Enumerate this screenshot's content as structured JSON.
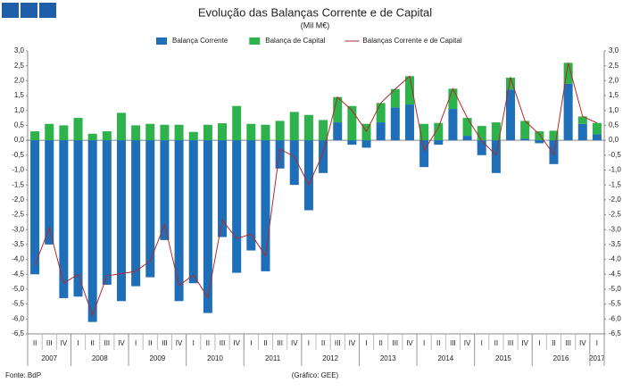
{
  "chart_data": {
    "type": "bar",
    "title": "Evolução das Balanças Corrente e de Capital",
    "subtitle": "(Mil M€)",
    "source": "Fonte: BdP",
    "credit": "(Gráfico: GEE)",
    "categories": [
      "II",
      "III",
      "IV",
      "I",
      "II",
      "III",
      "IV",
      "I",
      "II",
      "III",
      "IV",
      "I",
      "II",
      "III",
      "IV",
      "I",
      "II",
      "III",
      "IV",
      "I",
      "II",
      "III",
      "IV",
      "I",
      "II",
      "III",
      "IV",
      "I",
      "II",
      "III",
      "IV",
      "I",
      "II",
      "III",
      "IV",
      "I",
      "II",
      "III",
      "IV",
      "I"
    ],
    "years": [
      "2007",
      "2008",
      "2009",
      "2010",
      "2011",
      "2012",
      "2013",
      "2014",
      "2015",
      "2016",
      "2017"
    ],
    "series": [
      {
        "name": "Balança Corrente",
        "color": "#1f6fb8",
        "values": [
          -4.5,
          -3.5,
          -5.3,
          -5.25,
          -6.1,
          -4.85,
          -5.4,
          -4.9,
          -4.6,
          -3.35,
          -5.4,
          -4.8,
          -5.8,
          -3.25,
          -4.45,
          -3.7,
          -4.4,
          -0.95,
          -1.5,
          -2.35,
          -1.1,
          0.6,
          -0.15,
          -0.25,
          0.6,
          1.1,
          1.2,
          -0.9,
          -0.15,
          1.05,
          0.15,
          -0.5,
          -1.1,
          1.7,
          0.05,
          -0.1,
          -0.8,
          1.9,
          0.55,
          0.2
        ]
      },
      {
        "name": "Balança de Capital",
        "color": "#2eb34c",
        "values": [
          0.3,
          0.55,
          0.5,
          0.75,
          0.22,
          0.3,
          0.92,
          0.5,
          0.55,
          0.52,
          0.52,
          0.28,
          0.52,
          0.57,
          1.15,
          0.55,
          0.52,
          0.65,
          0.95,
          0.85,
          0.68,
          0.85,
          1.15,
          0.55,
          0.65,
          0.62,
          0.95,
          0.55,
          0.58,
          0.68,
          0.6,
          0.48,
          0.6,
          0.4,
          0.6,
          0.3,
          0.32,
          0.7,
          0.25,
          0.38
        ]
      },
      {
        "name": "Balanças Corrente e de Capital",
        "color": "#b02a2a",
        "type": "line",
        "values": [
          -4.2,
          -2.95,
          -4.8,
          -4.5,
          -5.88,
          -4.55,
          -4.48,
          -4.4,
          -4.05,
          -2.83,
          -4.88,
          -4.52,
          -5.28,
          -2.68,
          -3.3,
          -3.15,
          -3.88,
          -0.3,
          -0.55,
          -1.5,
          -0.42,
          1.45,
          1.0,
          0.3,
          1.25,
          1.72,
          2.15,
          -0.35,
          0.43,
          1.73,
          0.75,
          -0.02,
          -0.5,
          2.1,
          0.65,
          0.2,
          -0.48,
          2.6,
          0.8,
          0.58
        ]
      }
    ],
    "ylim": [
      -6.5,
      3.0
    ],
    "yticks": [
      {
        "value": 3.0,
        "label": "3,0"
      },
      {
        "value": 2.5,
        "label": "2,5"
      },
      {
        "value": 2.0,
        "label": "2,0"
      },
      {
        "value": 1.5,
        "label": "1,5"
      },
      {
        "value": 1.0,
        "label": "1,0"
      },
      {
        "value": 0.5,
        "label": "0,5"
      },
      {
        "value": 0,
        "label": "0,0"
      },
      {
        "value": -0.5,
        "label": "-0,5"
      },
      {
        "value": -1.0,
        "label": "-1,0"
      },
      {
        "value": -1.5,
        "label": "-1,5"
      },
      {
        "value": -2.0,
        "label": "-2,0"
      },
      {
        "value": -2.5,
        "label": "-2,5"
      },
      {
        "value": -3.0,
        "label": "-3,0"
      },
      {
        "value": -3.5,
        "label": "-3,5"
      },
      {
        "value": -4.0,
        "label": "-4,0"
      },
      {
        "value": -4.5,
        "label": "-4,5"
      },
      {
        "value": -5.0,
        "label": "-5,0"
      },
      {
        "value": -5.5,
        "label": "-5,5"
      },
      {
        "value": -6.0,
        "label": "-6,0"
      },
      {
        "value": -6.5,
        "label": "-6,5"
      }
    ],
    "y2lim": [
      -6.5,
      3.0
    ],
    "y2ticks": [
      {
        "value": 3.0,
        "label": "3,0"
      },
      {
        "value": 2.5,
        "label": "2,5"
      },
      {
        "value": 2.0,
        "label": "2,0"
      },
      {
        "value": 1.5,
        "label": "1,5"
      },
      {
        "value": 1.0,
        "label": "1,0"
      },
      {
        "value": 0.5,
        "label": "0,5"
      },
      {
        "value": 0,
        "label": "0,0"
      },
      {
        "value": -0.5,
        "label": "-0,5"
      },
      {
        "value": -1.0,
        "label": "-1,0"
      },
      {
        "value": -1.5,
        "label": "-1,5"
      },
      {
        "value": -2.0,
        "label": "-2,0"
      },
      {
        "value": -2.5,
        "label": "-2,5"
      },
      {
        "value": -3.0,
        "label": "-3,0"
      },
      {
        "value": -3.5,
        "label": "-3,5"
      },
      {
        "value": -4.0,
        "label": "-4,0"
      },
      {
        "value": -4.5,
        "label": "-4,5"
      },
      {
        "value": -5.0,
        "label": "-5,0"
      },
      {
        "value": -5.5,
        "label": "-5,5"
      },
      {
        "value": -6.0,
        "label": "-6,0"
      },
      {
        "value": -6.5,
        "label": "-6,5"
      }
    ],
    "legend": "top"
  }
}
